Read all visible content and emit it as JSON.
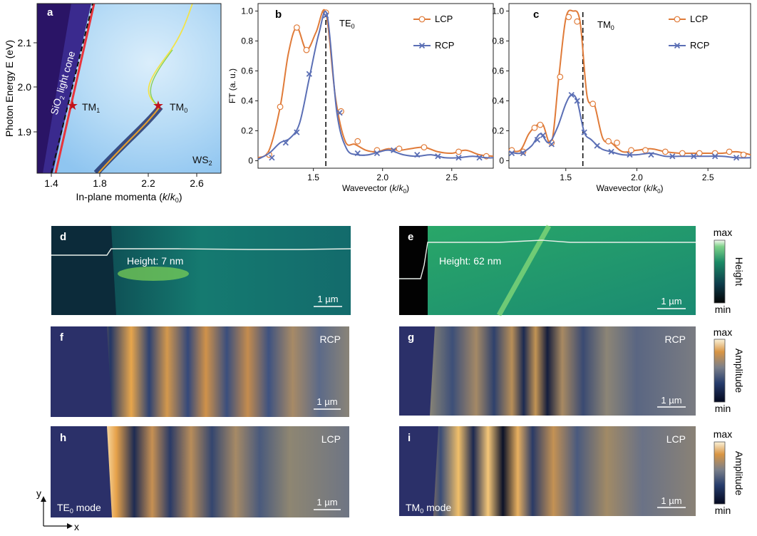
{
  "panels": {
    "a": {
      "letter": "a",
      "ylabel": "Photon Energy E (eV)",
      "xlabel_pre": "In-plane momenta (",
      "xlabel_k": "k",
      "xlabel_slash": "/",
      "xlabel_k0": "k",
      "xlabel_sub": "0",
      "xlabel_post": ")",
      "xticks": [
        "1.4",
        "1.8",
        "2.2",
        "2.6"
      ],
      "yticks": [
        "1.9",
        "2.0",
        "2.1"
      ],
      "light_cone_pre": "SiO",
      "light_cone_sub": "2",
      "light_cone_post": " light cone",
      "mode1": "TM",
      "mode1_sub": "1",
      "mode0": "TM",
      "mode0_sub": "0",
      "material": "WS",
      "material_sub": "2"
    },
    "b": {
      "letter": "b",
      "marker_label": "TE",
      "marker_sub": "0"
    },
    "c": {
      "letter": "c",
      "marker_label": "TM",
      "marker_sub": "0"
    },
    "d": {
      "letter": "d",
      "height_label": "Height: 7 nm",
      "scale": "1 µm"
    },
    "e": {
      "letter": "e",
      "height_label": "Height: 62 nm",
      "scale": "1 µm"
    },
    "f": {
      "letter": "f",
      "pol": "RCP",
      "scale": "1 µm"
    },
    "g": {
      "letter": "g",
      "pol": "RCP",
      "scale": "1 µm"
    },
    "h": {
      "letter": "h",
      "pol": "LCP",
      "scale": "1 µm",
      "mode": "TE",
      "mode_sub": "0",
      "mode_post": " mode"
    },
    "i": {
      "letter": "i",
      "pol": "LCP",
      "scale": "1 µm",
      "mode": "TM",
      "mode_sub": "0",
      "mode_post": " mode"
    }
  },
  "colorbars": {
    "height": {
      "max": "max",
      "min": "min",
      "label": "Height"
    },
    "amp1": {
      "max": "max",
      "min": "min",
      "label": "Amplitude"
    },
    "amp2": {
      "max": "max",
      "min": "min",
      "label": "Amplitude"
    }
  },
  "axes_arrows": {
    "y": "y",
    "x": "x"
  },
  "colors": {
    "lcp": "#e07b39",
    "rcp": "#5b6fb5",
    "star": "#c0141c"
  },
  "chart_data": [
    {
      "id": "b",
      "type": "line",
      "ylabel": "FT (a. u.)",
      "xlabel": "Wavevector (k/k0)",
      "xlim": [
        1.1,
        2.8
      ],
      "ylim": [
        -0.05,
        1.05
      ],
      "xticks": [
        1.5,
        2.0,
        2.5
      ],
      "yticks": [
        0,
        0.2,
        0.4,
        0.6,
        0.8,
        1.0
      ],
      "vline": 1.59,
      "series": [
        {
          "name": "LCP",
          "marker": "o",
          "x": [
            1.1,
            1.18,
            1.26,
            1.32,
            1.38,
            1.45,
            1.52,
            1.59,
            1.66,
            1.73,
            1.8,
            1.88,
            1.96,
            2.04,
            2.12,
            2.2,
            2.3,
            2.4,
            2.5,
            2.6,
            2.7,
            2.8
          ],
          "y": [
            0.02,
            0.07,
            0.36,
            0.72,
            0.89,
            0.74,
            0.86,
            0.99,
            0.42,
            0.13,
            0.11,
            0.07,
            0.06,
            0.08,
            0.07,
            0.08,
            0.09,
            0.06,
            0.05,
            0.07,
            0.04,
            0.03
          ],
          "marker_x": [
            1.18,
            1.26,
            1.38,
            1.45,
            1.59,
            1.7,
            1.82,
            1.96,
            2.12,
            2.3,
            2.55,
            2.75
          ],
          "marker_y": [
            0.04,
            0.36,
            0.89,
            0.74,
            0.99,
            0.33,
            0.13,
            0.07,
            0.08,
            0.09,
            0.06,
            0.03
          ]
        },
        {
          "name": "RCP",
          "marker": "x",
          "x": [
            1.1,
            1.18,
            1.26,
            1.33,
            1.4,
            1.47,
            1.54,
            1.6,
            1.67,
            1.74,
            1.82,
            1.9,
            1.98,
            2.05,
            2.15,
            2.25,
            2.35,
            2.45,
            2.55,
            2.65,
            2.75,
            2.8
          ],
          "y": [
            0.01,
            0.05,
            0.12,
            0.15,
            0.25,
            0.55,
            0.85,
            0.97,
            0.32,
            0.08,
            0.04,
            0.04,
            0.06,
            0.07,
            0.04,
            0.03,
            0.04,
            0.02,
            0.02,
            0.03,
            0.02,
            0.02
          ],
          "marker_x": [
            1.2,
            1.3,
            1.38,
            1.47,
            1.59,
            1.69,
            1.82,
            1.96,
            2.08,
            2.25,
            2.4,
            2.55,
            2.7
          ],
          "marker_y": [
            0.02,
            0.12,
            0.19,
            0.58,
            0.97,
            0.32,
            0.05,
            0.05,
            0.07,
            0.04,
            0.03,
            0.02,
            0.02
          ]
        }
      ]
    },
    {
      "id": "c",
      "type": "line",
      "ylabel": "",
      "xlabel": "Wavevector (k/k0)",
      "xlim": [
        1.1,
        2.8
      ],
      "ylim": [
        -0.05,
        1.05
      ],
      "xticks": [
        1.5,
        2.0,
        2.5
      ],
      "yticks": [
        0,
        0.2,
        0.4,
        0.6,
        0.8,
        1.0
      ],
      "vline": 1.62,
      "series": [
        {
          "name": "LCP",
          "marker": "o",
          "x": [
            1.1,
            1.18,
            1.24,
            1.3,
            1.34,
            1.4,
            1.45,
            1.5,
            1.55,
            1.6,
            1.65,
            1.7,
            1.76,
            1.82,
            1.9,
            2.0,
            2.1,
            2.2,
            2.3,
            2.4,
            2.5,
            2.6,
            2.7,
            2.8
          ],
          "y": [
            0.07,
            0.07,
            0.18,
            0.24,
            0.24,
            0.12,
            0.55,
            0.95,
            1.0,
            0.93,
            0.43,
            0.38,
            0.15,
            0.12,
            0.06,
            0.07,
            0.08,
            0.06,
            0.05,
            0.05,
            0.05,
            0.05,
            0.06,
            0.04
          ],
          "marker_x": [
            1.12,
            1.2,
            1.28,
            1.32,
            1.4,
            1.46,
            1.52,
            1.58,
            1.69,
            1.8,
            1.86,
            1.96,
            2.06,
            2.2,
            2.32,
            2.44,
            2.55,
            2.65,
            2.75
          ],
          "marker_y": [
            0.07,
            0.06,
            0.22,
            0.24,
            0.12,
            0.56,
            0.96,
            0.93,
            0.38,
            0.13,
            0.12,
            0.07,
            0.07,
            0.06,
            0.05,
            0.05,
            0.05,
            0.06,
            0.04
          ]
        },
        {
          "name": "RCP",
          "marker": "x",
          "x": [
            1.1,
            1.18,
            1.26,
            1.32,
            1.38,
            1.44,
            1.5,
            1.54,
            1.58,
            1.63,
            1.68,
            1.75,
            1.82,
            1.9,
            2.0,
            2.1,
            2.2,
            2.3,
            2.4,
            2.5,
            2.6,
            2.7,
            2.8
          ],
          "y": [
            0.06,
            0.05,
            0.1,
            0.18,
            0.12,
            0.22,
            0.38,
            0.44,
            0.4,
            0.19,
            0.14,
            0.08,
            0.06,
            0.04,
            0.04,
            0.05,
            0.03,
            0.03,
            0.03,
            0.03,
            0.03,
            0.02,
            0.02
          ],
          "marker_x": [
            1.12,
            1.2,
            1.3,
            1.34,
            1.4,
            1.54,
            1.58,
            1.63,
            1.72,
            1.82,
            1.95,
            2.1,
            2.25,
            2.4,
            2.55,
            2.7
          ],
          "marker_y": [
            0.05,
            0.05,
            0.14,
            0.17,
            0.11,
            0.44,
            0.4,
            0.19,
            0.1,
            0.06,
            0.04,
            0.04,
            0.03,
            0.03,
            0.03,
            0.02
          ]
        }
      ]
    }
  ]
}
